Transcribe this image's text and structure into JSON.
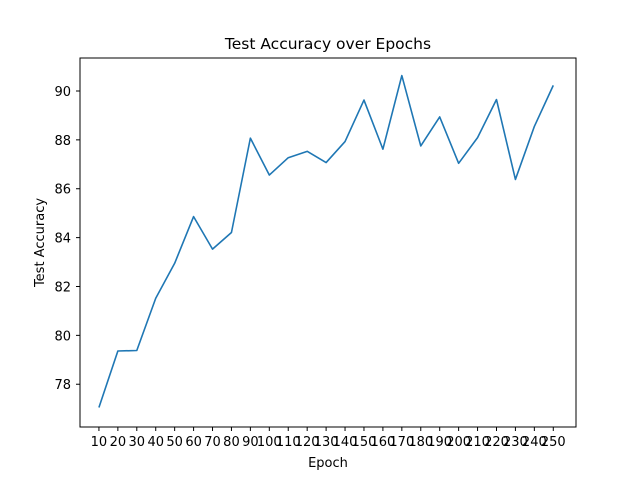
{
  "chart_data": {
    "type": "line",
    "title": "Test Accuracy over Epochs",
    "xlabel": "Epoch",
    "ylabel": "Test Accuracy",
    "x": [
      10,
      20,
      30,
      40,
      50,
      60,
      70,
      80,
      90,
      100,
      110,
      120,
      130,
      140,
      150,
      160,
      170,
      180,
      190,
      200,
      210,
      220,
      230,
      240,
      250
    ],
    "series": [
      {
        "values": [
          77.05,
          79.36,
          79.38,
          81.52,
          82.95,
          84.86,
          83.53,
          84.21,
          88.07,
          86.56,
          87.27,
          87.53,
          87.07,
          87.93,
          89.63,
          87.62,
          90.63,
          87.75,
          88.94,
          87.04,
          88.09,
          89.65,
          86.38,
          88.55,
          90.23
        ]
      }
    ],
    "xlim": [
      0,
      262
    ],
    "ylim": [
      76.25,
      91.35
    ],
    "yticks": [
      78,
      80,
      82,
      84,
      86,
      88,
      90
    ],
    "grid": false,
    "color": "#1f77b4"
  }
}
